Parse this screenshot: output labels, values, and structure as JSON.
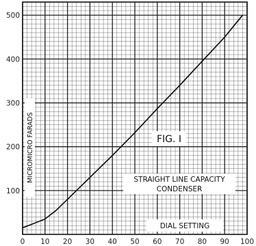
{
  "chart_data": {
    "type": "line",
    "title": "FIG. I",
    "subtitle": "STRAIGHT LINE CAPACITY CONDENSER",
    "subtitle_lines": [
      "STRAIGHT LINE CAPACITY",
      "CONDENSER"
    ],
    "xlabel": "DIAL SETTING",
    "ylabel": "MICROMICRO FARADS",
    "xlim": [
      0,
      100
    ],
    "ylim": [
      0,
      530
    ],
    "x_ticks": [
      0,
      10,
      20,
      30,
      40,
      50,
      60,
      70,
      80,
      90,
      100
    ],
    "y_ticks": [
      100,
      200,
      300,
      400,
      500
    ],
    "grid": true,
    "series": [
      {
        "x": [
          0,
          5,
          10,
          15,
          20,
          30,
          40,
          50,
          60,
          70,
          80,
          90,
          98
        ],
        "y": [
          15,
          25,
          35,
          55,
          80,
          130,
          180,
          232,
          287,
          340,
          395,
          450,
          500
        ]
      }
    ]
  }
}
